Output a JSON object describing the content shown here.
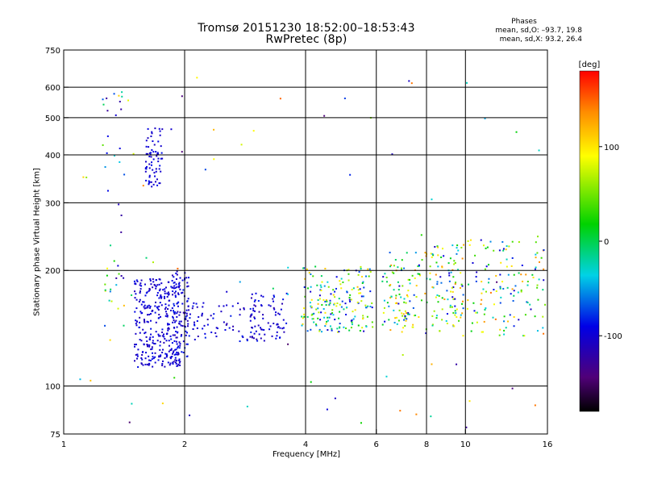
{
  "title_line1": "Tromsø 20151230 18:52:00–18:53:43",
  "title_line2": "RwPretec (8p)",
  "stats": {
    "heading": "Phases",
    "line_o": "mean, sd,O: –93.7, 19.8",
    "line_x": "mean, sd,X: 93.2, 26.4"
  },
  "colorbar": {
    "unit_label": "[deg]",
    "range": [
      -180,
      180
    ],
    "ticks": [
      {
        "value": 100,
        "label": "100"
      },
      {
        "value": 0,
        "label": "0"
      },
      {
        "value": -100,
        "label": "-100"
      }
    ]
  },
  "chart_data": {
    "type": "scatter",
    "title": "Tromsø 20151230 18:52:00–18:53:43",
    "subtitle": "RwPretec (8p)",
    "xlabel": "Frequency [MHz]",
    "ylabel": "Stationary phase Virtual Height [km]",
    "xscale": "log",
    "yscale": "log",
    "xlim": [
      1,
      16
    ],
    "ylim": [
      75,
      750
    ],
    "xticks": [
      1,
      2,
      4,
      6,
      8,
      10,
      16
    ],
    "yticks": [
      75,
      100,
      200,
      300,
      400,
      500,
      600,
      750
    ],
    "grid": true,
    "color_encoding": "phase (deg), rainbow colormap",
    "point_groups": [
      {
        "x_range": [
          1.5,
          1.95
        ],
        "y_range": [
          112,
          190
        ],
        "n": 320,
        "phase_range": [
          -115,
          -85
        ]
      },
      {
        "x_range": [
          1.6,
          1.76
        ],
        "y_range": [
          330,
          470
        ],
        "n": 70,
        "phase_range": [
          -110,
          -85
        ]
      },
      {
        "x_range": [
          1.85,
          2.05
        ],
        "y_range": [
          115,
          200
        ],
        "n": 90,
        "phase_range": [
          -120,
          -80
        ]
      },
      {
        "x_range": [
          1.25,
          1.42
        ],
        "y_range": [
          130,
          620
        ],
        "n": 45,
        "phase_range": [
          -130,
          120
        ]
      },
      {
        "x_range": [
          2.0,
          3.0
        ],
        "y_range": [
          130,
          165
        ],
        "n": 80,
        "phase_range": [
          -120,
          -80
        ]
      },
      {
        "x_range": [
          2.9,
          3.6
        ],
        "y_range": [
          130,
          175
        ],
        "n": 70,
        "phase_range": [
          -120,
          -80
        ]
      },
      {
        "x_range": [
          3.9,
          5.9
        ],
        "y_range": [
          138,
          205
        ],
        "n": 190,
        "phase_range": [
          -110,
          120
        ]
      },
      {
        "x_range": [
          6.2,
          7.8
        ],
        "y_range": [
          138,
          225
        ],
        "n": 100,
        "phase_range": [
          -110,
          140
        ]
      },
      {
        "x_range": [
          7.9,
          9.9
        ],
        "y_range": [
          135,
          235
        ],
        "n": 110,
        "phase_range": [
          -110,
          140
        ]
      },
      {
        "x_range": [
          10.1,
          15.8
        ],
        "y_range": [
          135,
          240
        ],
        "n": 130,
        "phase_range": [
          -110,
          150
        ]
      },
      {
        "x_range": [
          1.05,
          15.5
        ],
        "y_range": [
          78,
          650
        ],
        "n": 70,
        "phase_range": [
          -150,
          150
        ]
      }
    ]
  }
}
